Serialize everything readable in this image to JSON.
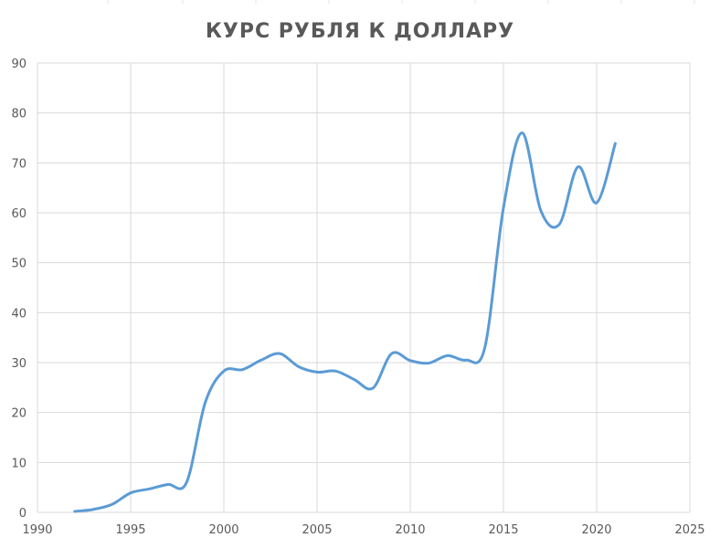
{
  "chart_data": {
    "type": "line",
    "title": "КУРС РУБЛЯ К ДОЛЛАРУ",
    "xlabel": "",
    "ylabel": "",
    "xlim": [
      1990,
      2025
    ],
    "ylim": [
      0,
      90
    ],
    "x_ticks": [
      1990,
      1995,
      2000,
      2005,
      2010,
      2015,
      2020,
      2025
    ],
    "y_ticks": [
      0,
      10,
      20,
      30,
      40,
      50,
      60,
      70,
      80,
      90
    ],
    "grid": true,
    "legend": "none",
    "line_style": "smooth",
    "series": [
      {
        "color": "#5b9bd5",
        "x": [
          1992,
          1993,
          1994,
          1995,
          1996,
          1997,
          1998,
          1999,
          2000,
          2001,
          2002,
          2003,
          2004,
          2005,
          2006,
          2007,
          2008,
          2009,
          2010,
          2011,
          2012,
          2013,
          2014,
          2015,
          2016,
          2017,
          2018,
          2019,
          2020,
          2021
        ],
        "y": [
          0.2,
          0.6,
          1.6,
          3.9,
          4.7,
          5.6,
          6.0,
          22.0,
          28.3,
          28.6,
          30.5,
          31.8,
          29.2,
          28.1,
          28.3,
          26.6,
          24.9,
          31.8,
          30.4,
          29.9,
          31.4,
          30.5,
          33.0,
          61.0,
          76.0,
          60.5,
          57.7,
          69.2,
          62.0,
          73.9
        ]
      }
    ],
    "colors": {
      "grid": "#d9d9d9",
      "tick_text": "#595959",
      "title_text": "#595959"
    }
  }
}
